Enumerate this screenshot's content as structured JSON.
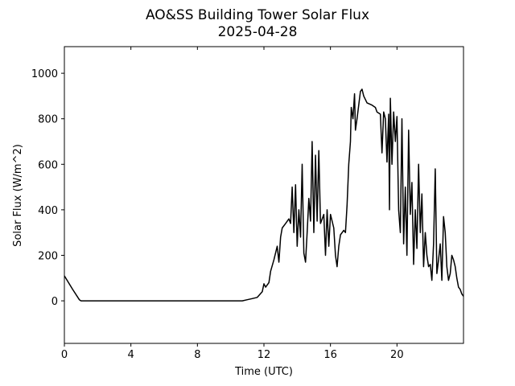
{
  "chart_data": {
    "type": "line",
    "title": "AO&SS Building Tower Solar Flux",
    "subtitle": "2025-04-28",
    "xlabel": "Time (UTC)",
    "ylabel": "Solar Flux (W/m^2)",
    "xlim": [
      0,
      24
    ],
    "ylim": [
      -187,
      1117
    ],
    "xticks": [
      0,
      4,
      8,
      12,
      16,
      20
    ],
    "yticks": [
      0,
      200,
      400,
      600,
      800,
      1000
    ],
    "color": "#000000",
    "x": [
      0,
      0.5,
      0.9,
      1.0,
      10.7,
      11,
      11.3,
      11.6,
      11.9,
      12.0,
      12.1,
      12.3,
      12.4,
      12.6,
      12.8,
      12.9,
      13.0,
      13.1,
      13.3,
      13.5,
      13.6,
      13.7,
      13.8,
      13.9,
      14.0,
      14.1,
      14.2,
      14.3,
      14.4,
      14.5,
      14.6,
      14.7,
      14.8,
      14.9,
      15.0,
      15.1,
      15.2,
      15.3,
      15.4,
      15.6,
      15.7,
      15.8,
      15.9,
      16.0,
      16.2,
      16.3,
      16.4,
      16.5,
      16.6,
      16.8,
      16.9,
      17.0,
      17.1,
      17.2,
      17.25,
      17.35,
      17.45,
      17.5,
      17.6,
      17.7,
      17.8,
      17.9,
      18.0,
      18.2,
      18.5,
      18.7,
      18.8,
      19.0,
      19.1,
      19.2,
      19.3,
      19.4,
      19.5,
      19.55,
      19.6,
      19.7,
      19.8,
      19.9,
      20.0,
      20.1,
      20.2,
      20.3,
      20.4,
      20.5,
      20.6,
      20.7,
      20.8,
      20.9,
      21.0,
      21.1,
      21.2,
      21.3,
      21.4,
      21.5,
      21.6,
      21.7,
      21.8,
      21.9,
      22.0,
      22.1,
      22.2,
      22.3,
      22.4,
      22.5,
      22.6,
      22.7,
      22.8,
      22.9,
      23.0,
      23.1,
      23.2,
      23.3,
      23.4,
      23.5,
      23.6,
      23.7,
      23.8,
      23.9,
      24.0
    ],
    "values": [
      110,
      50,
      5,
      0,
      0,
      5,
      10,
      15,
      40,
      75,
      60,
      80,
      130,
      180,
      240,
      170,
      280,
      320,
      340,
      360,
      340,
      500,
      300,
      510,
      240,
      400,
      280,
      600,
      210,
      170,
      300,
      450,
      350,
      700,
      300,
      640,
      350,
      660,
      340,
      380,
      200,
      400,
      240,
      380,
      320,
      200,
      150,
      240,
      290,
      310,
      300,
      420,
      600,
      700,
      850,
      800,
      910,
      750,
      800,
      860,
      920,
      930,
      900,
      870,
      860,
      850,
      830,
      820,
      650,
      830,
      800,
      610,
      820,
      400,
      890,
      600,
      830,
      700,
      810,
      400,
      300,
      800,
      250,
      500,
      200,
      750,
      380,
      520,
      160,
      400,
      230,
      600,
      300,
      470,
      150,
      300,
      200,
      150,
      160,
      90,
      250,
      580,
      120,
      180,
      250,
      90,
      370,
      300,
      150,
      90,
      120,
      200,
      180,
      150,
      100,
      60,
      50,
      30,
      20
    ]
  }
}
